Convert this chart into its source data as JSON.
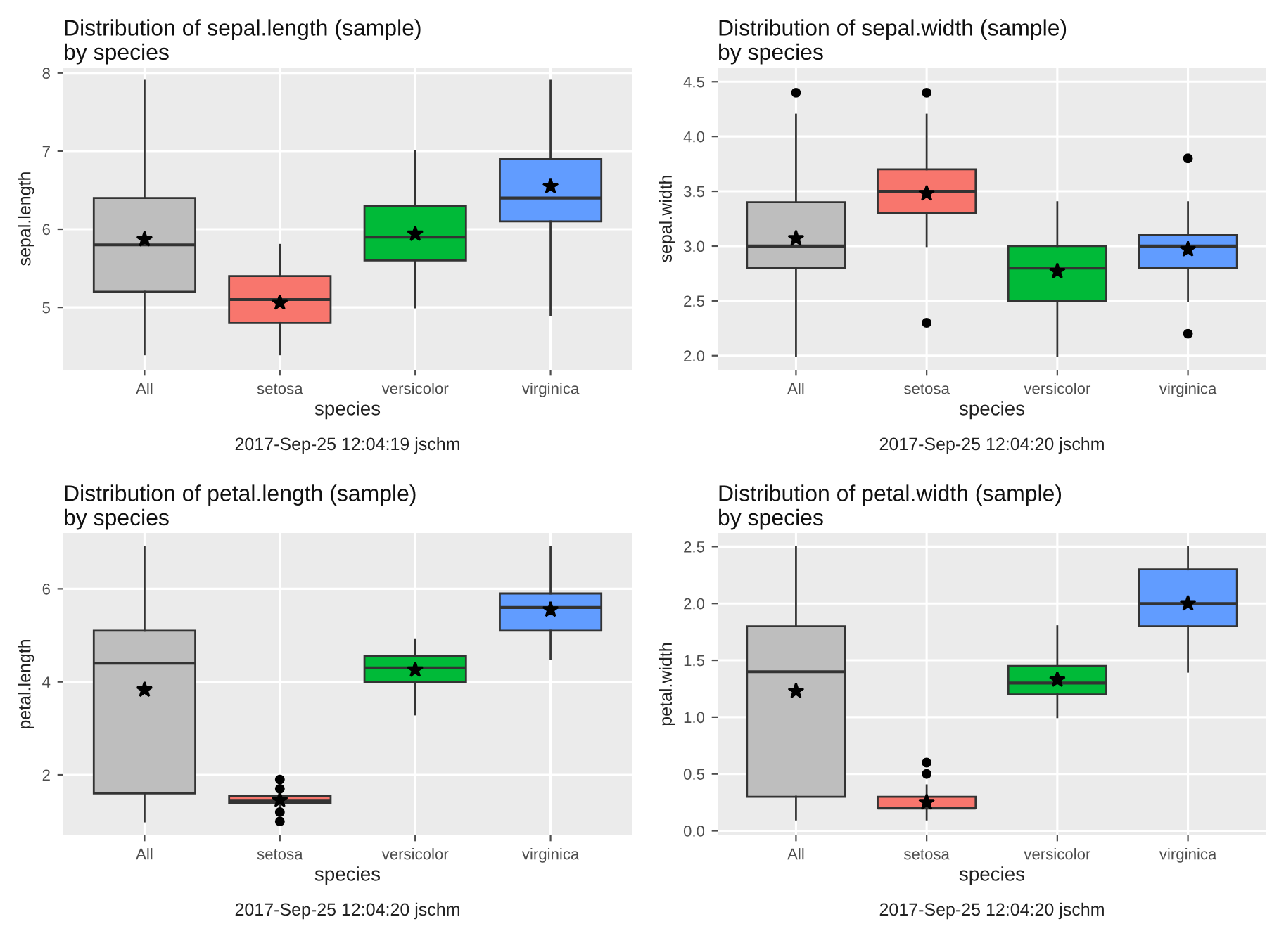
{
  "chart_data": [
    {
      "type": "box",
      "title": "Distribution of sepal.length (sample)\nby species",
      "xlabel": "species",
      "ylabel": "sepal.length",
      "categories": [
        "All",
        "setosa",
        "versicolor",
        "virginica"
      ],
      "colors": [
        "#bebebe",
        "#f8766d",
        "#00ba38",
        "#619cff"
      ],
      "boxes": [
        {
          "low": 4.4,
          "q1": 5.2,
          "median": 5.8,
          "q3": 6.4,
          "high": 7.9,
          "mean": 5.87
        },
        {
          "low": 4.4,
          "q1": 4.8,
          "median": 5.1,
          "q3": 5.4,
          "high": 5.8,
          "mean": 5.06
        },
        {
          "low": 5.0,
          "q1": 5.6,
          "median": 5.9,
          "q3": 6.3,
          "high": 7.0,
          "mean": 5.94
        },
        {
          "low": 4.9,
          "q1": 6.1,
          "median": 6.4,
          "q3": 6.9,
          "high": 7.9,
          "mean": 6.55
        }
      ],
      "ylim": [
        4.2,
        8.07
      ],
      "yticks": [
        5,
        6,
        7,
        8
      ],
      "grid": true,
      "annotations": [
        "2017-Sep-25 12:04:19 jschm"
      ]
    },
    {
      "type": "box",
      "title": "Distribution of sepal.width (sample)\nby species",
      "xlabel": "species",
      "ylabel": "sepal.width",
      "categories": [
        "All",
        "setosa",
        "versicolor",
        "virginica"
      ],
      "colors": [
        "#bebebe",
        "#f8766d",
        "#00ba38",
        "#619cff"
      ],
      "boxes": [
        {
          "low": 2.0,
          "q1": 2.8,
          "median": 3.0,
          "q3": 3.4,
          "high": 4.2,
          "mean": 3.07,
          "outliers": [
            4.4
          ]
        },
        {
          "low": 3.0,
          "q1": 3.3,
          "median": 3.5,
          "q3": 3.7,
          "high": 4.2,
          "mean": 3.48,
          "outliers": [
            4.4,
            2.3
          ]
        },
        {
          "low": 2.0,
          "q1": 2.5,
          "median": 2.8,
          "q3": 3.0,
          "high": 3.4,
          "mean": 2.77
        },
        {
          "low": 2.5,
          "q1": 2.8,
          "median": 3.0,
          "q3": 3.1,
          "high": 3.4,
          "mean": 2.97,
          "outliers": [
            3.8,
            2.2
          ]
        }
      ],
      "ylim": [
        1.87,
        4.63
      ],
      "yticks": [
        {
          "value": 2.0,
          "label": "2.0"
        },
        2.5,
        {
          "value": 3.0,
          "label": "3.0"
        },
        3.5,
        {
          "value": 4.0,
          "label": "4.0"
        },
        4.5
      ],
      "grid": true,
      "annotations": [
        "2017-Sep-25 12:04:20 jschm"
      ]
    },
    {
      "type": "box",
      "title": "Distribution of petal.length (sample)\nby species",
      "xlabel": "species",
      "ylabel": "petal.length",
      "categories": [
        "All",
        "setosa",
        "versicolor",
        "virginica"
      ],
      "colors": [
        "#bebebe",
        "#f8766d",
        "#00ba38",
        "#619cff"
      ],
      "boxes": [
        {
          "low": 1.0,
          "q1": 1.6,
          "median": 4.4,
          "q3": 5.1,
          "high": 6.9,
          "mean": 3.83
        },
        {
          "low": 1.3,
          "q1": 1.4,
          "median": 1.45,
          "q3": 1.55,
          "high": 1.6,
          "mean": 1.46,
          "outliers": [
            1.9,
            1.7,
            1.2,
            1.0
          ]
        },
        {
          "low": 3.3,
          "q1": 4.0,
          "median": 4.3,
          "q3": 4.55,
          "high": 4.9,
          "mean": 4.26
        },
        {
          "low": 4.5,
          "q1": 5.1,
          "median": 5.6,
          "q3": 5.9,
          "high": 6.9,
          "mean": 5.55
        }
      ],
      "ylim": [
        0.7,
        7.2
      ],
      "yticks": [
        2,
        4,
        6
      ],
      "grid": true,
      "annotations": [
        "2017-Sep-25 12:04:20 jschm"
      ]
    },
    {
      "type": "box",
      "title": "Distribution of petal.width (sample)\nby species",
      "xlabel": "species",
      "ylabel": "petal.width",
      "categories": [
        "All",
        "setosa",
        "versicolor",
        "virginica"
      ],
      "colors": [
        "#bebebe",
        "#f8766d",
        "#00ba38",
        "#619cff"
      ],
      "boxes": [
        {
          "low": 0.1,
          "q1": 0.3,
          "median": 1.4,
          "q3": 1.8,
          "high": 2.5,
          "mean": 1.23
        },
        {
          "low": 0.1,
          "q1": 0.2,
          "median": 0.2,
          "q3": 0.3,
          "high": 0.4,
          "mean": 0.25,
          "outliers": [
            0.6,
            0.5
          ]
        },
        {
          "low": 1.0,
          "q1": 1.2,
          "median": 1.3,
          "q3": 1.45,
          "high": 1.8,
          "mean": 1.33
        },
        {
          "low": 1.4,
          "q1": 1.8,
          "median": 2.0,
          "q3": 2.3,
          "high": 2.5,
          "mean": 2.0
        }
      ],
      "ylim": [
        -0.04,
        2.62
      ],
      "yticks": [
        {
          "value": 0.0,
          "label": "0.0"
        },
        0.5,
        {
          "value": 1.0,
          "label": "1.0"
        },
        1.5,
        {
          "value": 2.0,
          "label": "2.0"
        },
        2.5
      ],
      "grid": true,
      "annotations": [
        "2017-Sep-25 12:04:20 jschm"
      ]
    }
  ]
}
